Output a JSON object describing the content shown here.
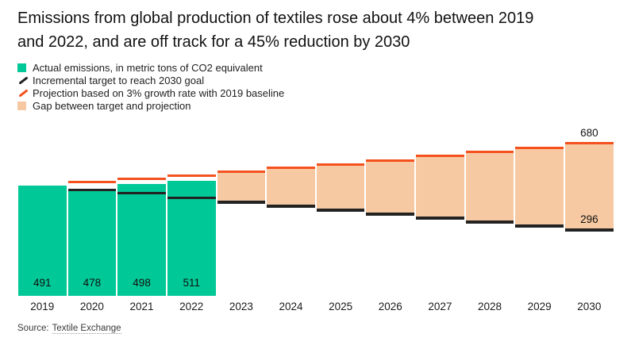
{
  "title": {
    "line1": "Emissions from global production of textiles rose about 4% between 2019",
    "line2": "and 2022, and are off track for a 45% reduction by 2030"
  },
  "legend": {
    "items": [
      {
        "label": "Actual emissions, in metric tons of CO2 equivalent",
        "icon": "teal-square"
      },
      {
        "label": "Incremental target to reach 2030 goal",
        "icon": "black-slash"
      },
      {
        "label": "Projection based on 3% growth rate with 2019 baseline",
        "icon": "orange-slash"
      },
      {
        "label": "Gap between target and projection",
        "icon": "peach-square"
      }
    ]
  },
  "source": {
    "prefix": "Source:",
    "link_text": "Textile Exchange"
  },
  "colors": {
    "actual": "#00c896",
    "target": "#222222",
    "projection": "#f4511e",
    "gap": "#f7c9a2"
  },
  "chart_data": {
    "type": "bar",
    "title": "Emissions from global production of textiles rose about 4% between 2019 and 2022, and are off track for a 45% reduction by 2030",
    "categories": [
      "2019",
      "2020",
      "2021",
      "2022",
      "2023",
      "2024",
      "2025",
      "2026",
      "2027",
      "2028",
      "2029",
      "2030"
    ],
    "series": [
      {
        "key": "actual",
        "name": "Actual emissions, in metric tons of CO2 equivalent",
        "type": "bar",
        "color": "#00c896",
        "values": [
          491,
          478,
          498,
          511,
          null,
          null,
          null,
          null,
          null,
          null,
          null,
          null
        ]
      },
      {
        "key": "target",
        "name": "Incremental target to reach 2030 goal",
        "type": "line",
        "color": "#222222",
        "values": [
          null,
          473,
          456,
          438,
          420,
          402,
          385,
          367,
          349,
          331,
          314,
          296
        ]
      },
      {
        "key": "projection",
        "name": "Projection based on 3% growth rate with 2019 baseline",
        "type": "line",
        "color": "#f4511e",
        "values": [
          null,
          506,
          521,
          536,
          553,
          569,
          586,
          604,
          622,
          641,
          660,
          680
        ]
      },
      {
        "key": "gap",
        "name": "Gap between target and projection",
        "type": "floating-bar",
        "color": "#f7c9a2",
        "note": "rendered 2023-2030 spanning from target (bottom) to projection (top)"
      }
    ],
    "annotations": [
      {
        "category": "2030",
        "value": 680,
        "label": "680",
        "anchor": "projection"
      },
      {
        "category": "2030",
        "value": 296,
        "label": "296",
        "anchor": "target"
      }
    ],
    "bar_value_labels": [
      "491",
      "478",
      "498",
      "511"
    ],
    "xlabel": "",
    "ylabel": "",
    "ylim": [
      0,
      790
    ],
    "grid": false,
    "legend_position": "top-left"
  }
}
